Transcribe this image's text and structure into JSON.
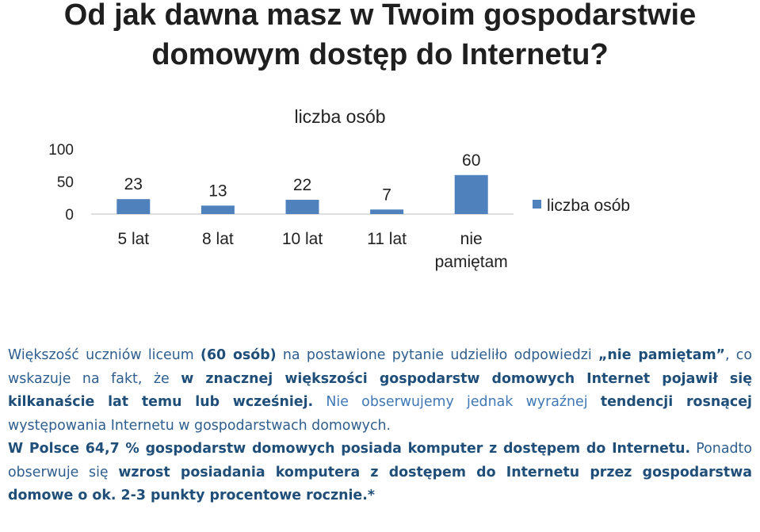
{
  "title_line1": "Od jak dawna masz w Twoim gospodarstwie",
  "title_line2": "domowym dostęp do Internetu?",
  "chart_data": {
    "type": "bar",
    "title": "liczba osób",
    "categories": [
      "5 lat",
      "8 lat",
      "10 lat",
      "11 lat",
      "nie pamiętam"
    ],
    "series": [
      {
        "name": "liczba osób",
        "values": [
          23,
          13,
          22,
          7,
          60
        ]
      }
    ],
    "data_labels": [
      "23",
      "13",
      "22",
      "7",
      "60"
    ],
    "ylim": [
      0,
      100
    ],
    "yticks": [
      "0",
      "50",
      "100"
    ],
    "grid": false,
    "legend": "right",
    "bar_color": "#4f81bd"
  },
  "text": {
    "p1_a": "Większość uczniów liceum ",
    "p1_b": "(60 osób)",
    "p1_c": " na postawione pytanie udzieliło odpowiedzi ",
    "p1_d": "„nie pamiętam”",
    "p1_e": ", co wskazuje na fakt, że ",
    "p1_f": "w znacznej większości gospodarstw domowych Internet pojawił się kilkanaście lat temu lub wcześniej.",
    "p1_g": " Nie obserwujemy jednak wyraźnej ",
    "p1_h": "tendencji rosnącej",
    "p1_i": " występowania Internetu w gospodarstwach domowych.",
    "p2_a": "W Polsce 64,7 % gospodarstw domowych posiada komputer z dostępem do Internetu.",
    "p2_b": " Ponadto obserwuje się ",
    "p2_c": "wzrost posiadania komputera z dostępem do Internetu przez gospodarstwa domowe o ok. 2-3 punkty procentowe rocznie.*"
  }
}
